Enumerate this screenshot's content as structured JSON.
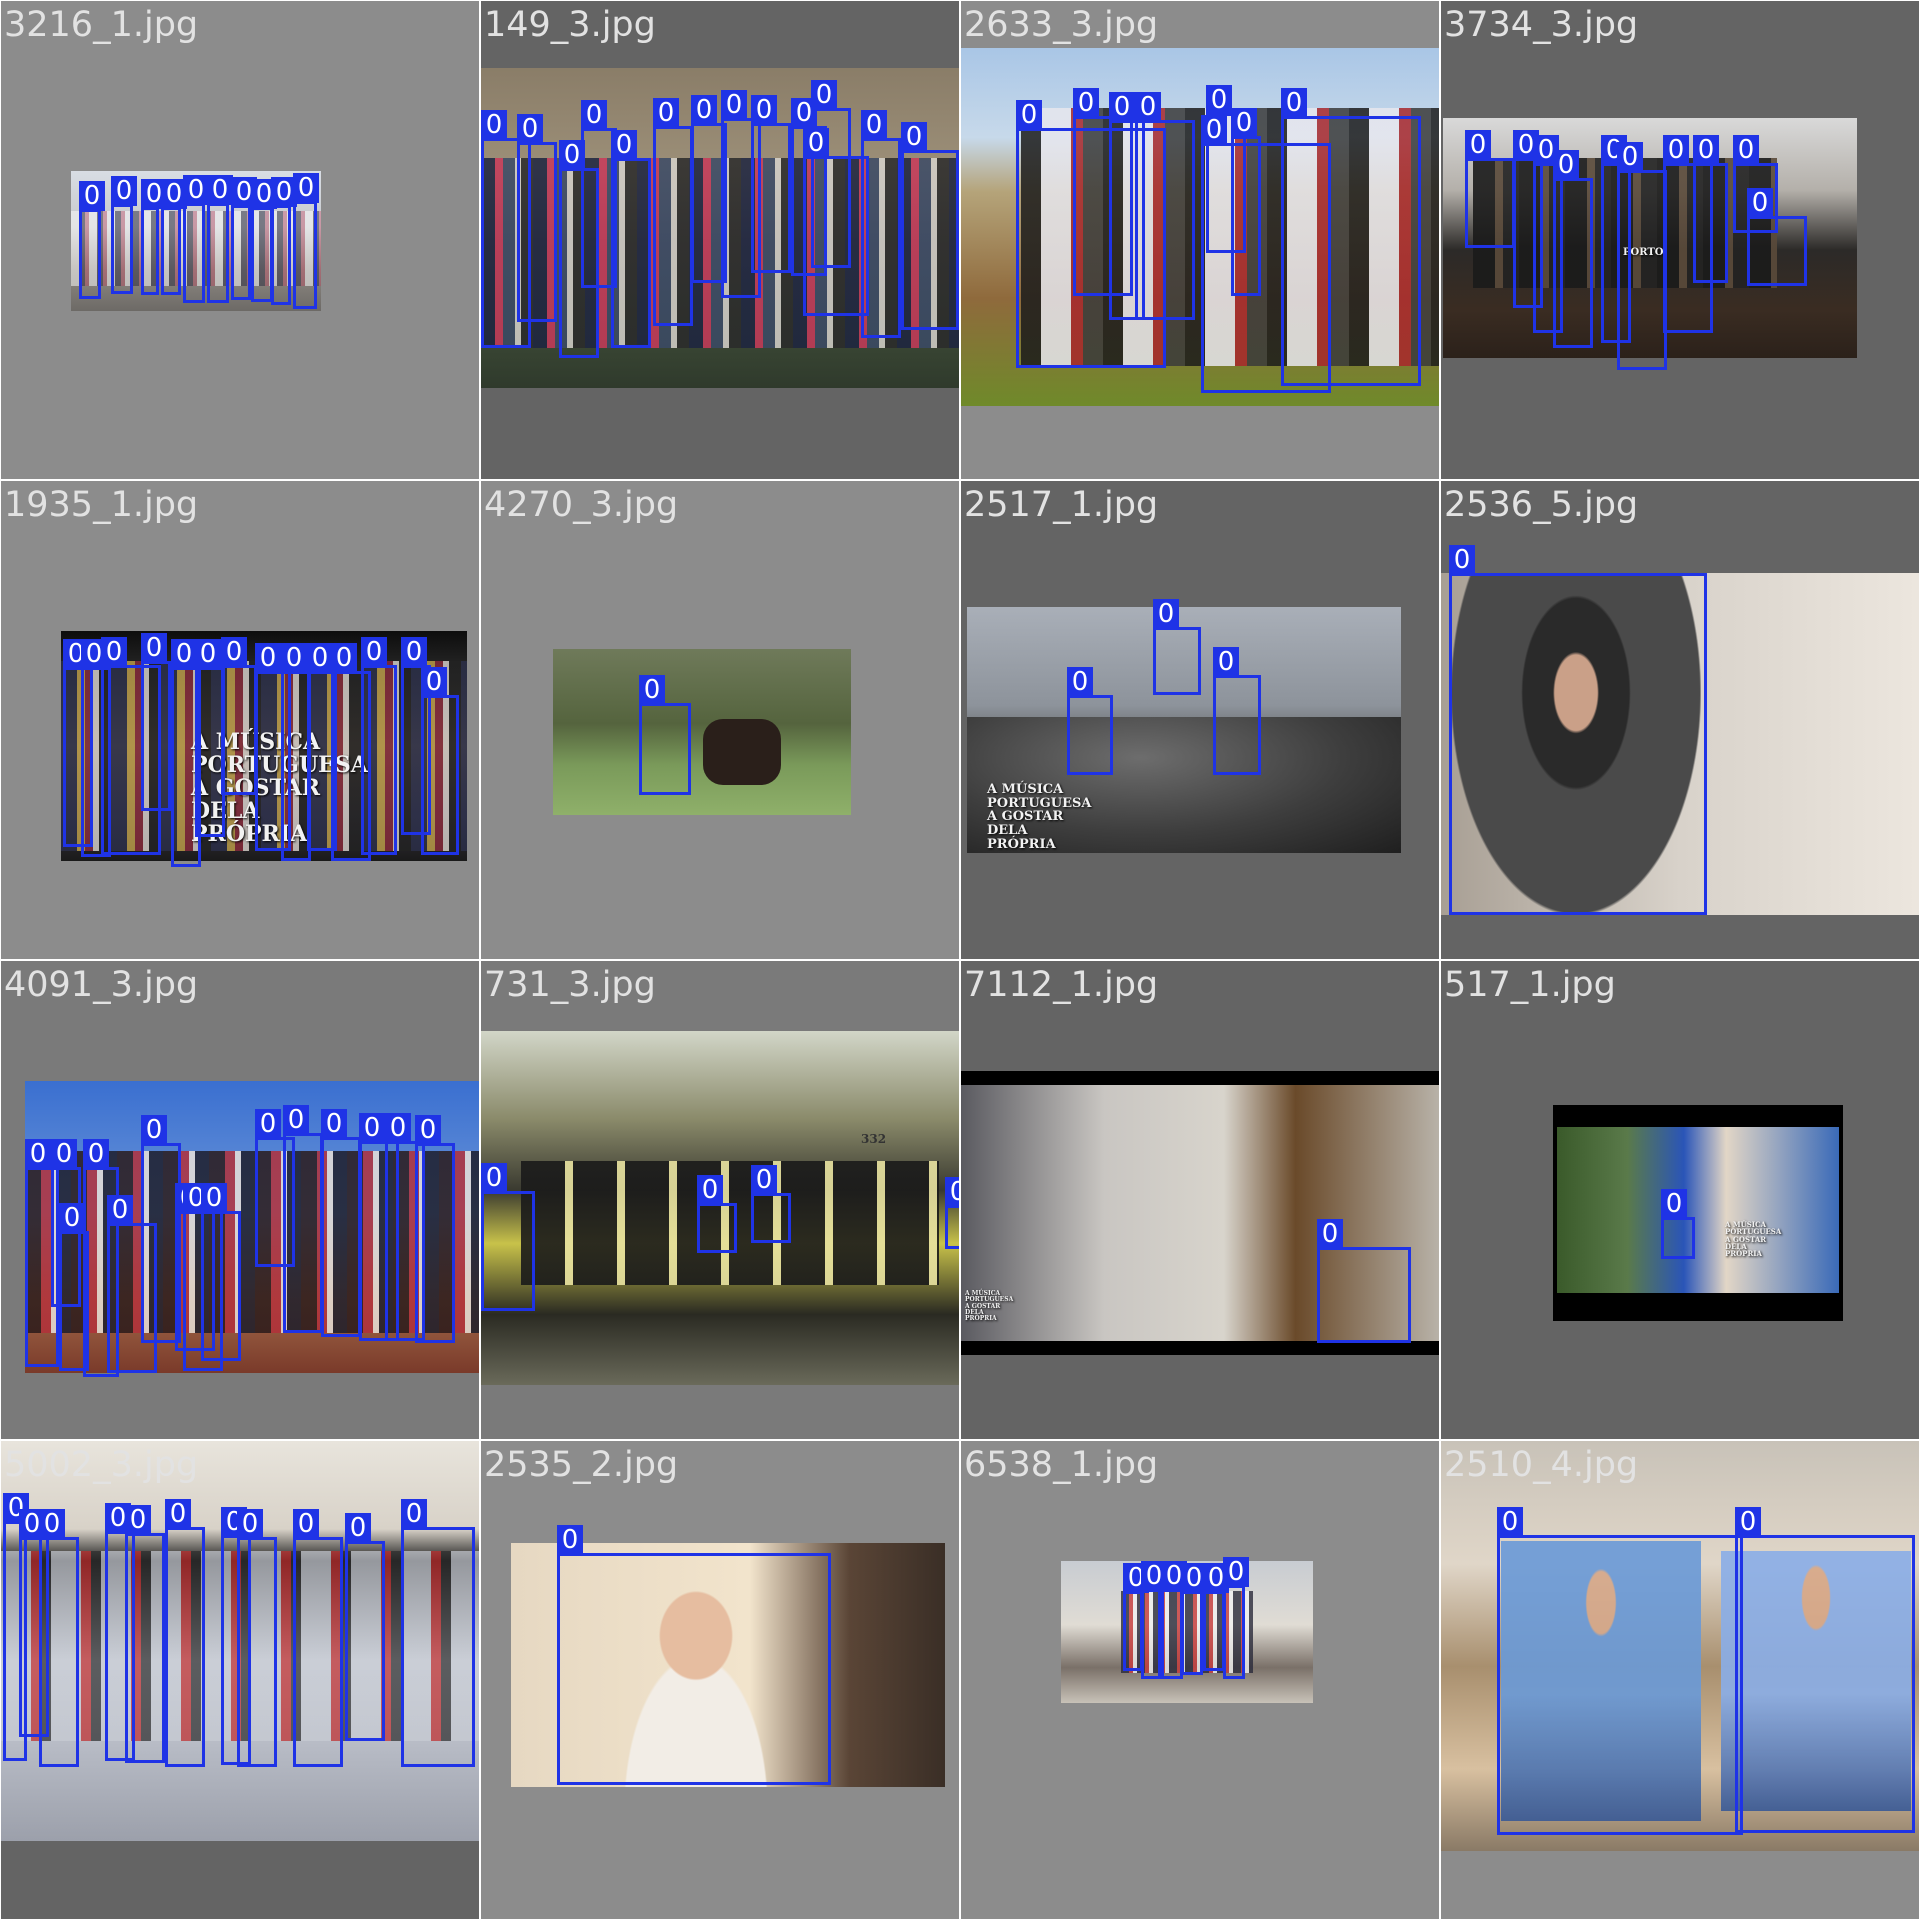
{
  "tiles": [
    {
      "title": "3216_1.jpg",
      "label": "0"
    },
    {
      "title": "149_3.jpg",
      "label": "0"
    },
    {
      "title": "2633_3.jpg",
      "label": "0"
    },
    {
      "title": "3734_3.jpg",
      "label": "0"
    },
    {
      "title": "1935_1.jpg",
      "label": "0"
    },
    {
      "title": "4270_3.jpg",
      "label": "0"
    },
    {
      "title": "2517_1.jpg",
      "label": "0"
    },
    {
      "title": "2536_5.jpg",
      "label": "0"
    },
    {
      "title": "4091_3.jpg",
      "label": "0"
    },
    {
      "title": "731_3.jpg",
      "label": "0"
    },
    {
      "title": "7112_1.jpg",
      "label": "0"
    },
    {
      "title": "517_1.jpg",
      "label": "0"
    },
    {
      "title": "5002_3.jpg",
      "label": "0"
    },
    {
      "title": "2535_2.jpg",
      "label": "0"
    },
    {
      "title": "6538_1.jpg",
      "label": "0"
    },
    {
      "title": "2510_4.jpg",
      "label": "0"
    }
  ],
  "overlay_texts": {
    "t1935": "A MÚSICA PORTUGUESA A GOSTAR DELA PRÓPRIA",
    "t2517": "A MÚSICA PORTUGUESA A GOSTAR DELA PRÓPRIA",
    "t517": "A MÚSICA PORTUGUESA A GOSTAR DELA PRÓPRIA",
    "t7112": "A MÚSICA PORTUGUESA A GOSTAR DELA PRÓPRIA",
    "t3734": "PORTO",
    "tram": "332"
  },
  "colors": {
    "box": "#1f33e6",
    "title": "#e2e2e2"
  }
}
